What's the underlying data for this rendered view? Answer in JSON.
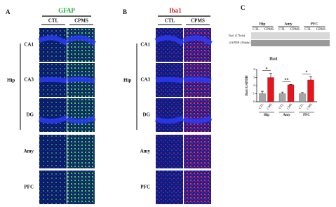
{
  "panel_a": {
    "label": "A",
    "marker": "GFAP",
    "columns": [
      "CTL",
      "CPMS"
    ],
    "region_group": "Hip",
    "rows": [
      "CA1",
      "CA3",
      "DG",
      "Amy",
      "PFC"
    ]
  },
  "panel_b": {
    "label": "B",
    "marker": "Iba1",
    "columns": [
      "CTL",
      "CPMS"
    ],
    "region_group": "Hip",
    "rows": [
      "CA1",
      "CA3",
      "DG",
      "Amy",
      "PFC"
    ]
  },
  "panel_c": {
    "label": "C",
    "blot": {
      "groups": [
        "Hip",
        "Amy",
        "PFC"
      ],
      "lanes": [
        "CTL",
        "CPMS",
        "CTL",
        "CPMS",
        "CTL",
        "CPMS"
      ],
      "bands": [
        "Iba1 (17kda)",
        "GAPDH (36kda)"
      ]
    },
    "chart_data": {
      "type": "bar",
      "title": "Iba1",
      "y_label": "Iba1/GAPDH",
      "groups": [
        "Hip",
        "Amy",
        "PFC"
      ],
      "categories": [
        "CTL",
        "CMS",
        "CTL",
        "CMS",
        "CTL",
        "CMS"
      ],
      "values": [
        1.0,
        3.0,
        1.0,
        2.1,
        1.0,
        2.7
      ],
      "errors": [
        0.3,
        0.5,
        0.2,
        0.05,
        0.15,
        0.4
      ],
      "colors": [
        "#a6a6a6",
        "#e8141b"
      ],
      "significance": [
        "*",
        "**",
        "*"
      ],
      "ylim": [
        0,
        4
      ],
      "yticks": [
        0,
        1,
        2,
        3,
        4
      ]
    }
  }
}
